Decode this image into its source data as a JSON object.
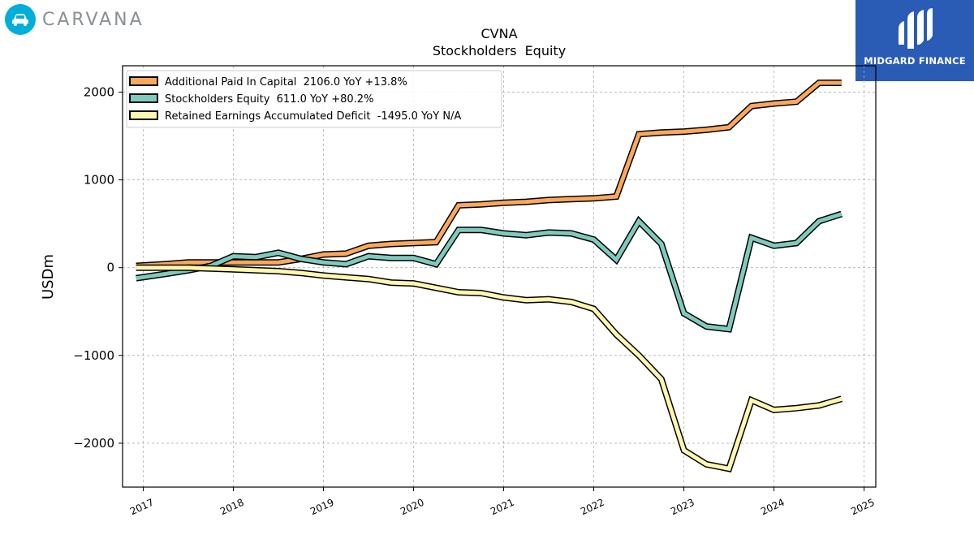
{
  "brand": {
    "left_logo_text": "CARVANA",
    "left_logo_color": "#00aed9",
    "right_logo_text": "MIDGARD FINANCE",
    "right_logo_color": "#2a5bb5"
  },
  "chart_data": {
    "type": "line",
    "title": "CVNA",
    "subtitle": "Stockholders  Equity",
    "xlabel": "",
    "ylabel": "USDm",
    "xlim": [
      2016.77,
      2025.13
    ],
    "ylim": [
      -2500,
      2300
    ],
    "x_ticks": [
      "2017",
      "2018",
      "2019",
      "2020",
      "2021",
      "2022",
      "2023",
      "2024",
      "2025"
    ],
    "y_ticks": [
      2000,
      1000,
      0,
      -1000,
      -2000
    ],
    "y_tick_labels": [
      "2000",
      "1000",
      "0",
      "−1000",
      "−2000"
    ],
    "grid": true,
    "legend_position": "top-left",
    "x": [
      2016.92,
      2017.25,
      2017.5,
      2017.75,
      2018.0,
      2018.25,
      2018.5,
      2018.75,
      2019.0,
      2019.25,
      2019.5,
      2019.75,
      2020.0,
      2020.25,
      2020.5,
      2020.75,
      2021.0,
      2021.25,
      2021.5,
      2021.75,
      2022.0,
      2022.25,
      2022.5,
      2022.75,
      2023.0,
      2023.25,
      2023.5,
      2023.75,
      2024.0,
      2024.25,
      2024.5,
      2024.75
    ],
    "series": [
      {
        "name": "Additional Paid In Capital",
        "legend": "Additional Paid In Capital  2106.0 YoY +13.8%",
        "color": "#f9a85d",
        "values": [
          20,
          40,
          60,
          60,
          60,
          60,
          60,
          100,
          150,
          160,
          250,
          270,
          280,
          290,
          710,
          720,
          740,
          750,
          770,
          780,
          790,
          810,
          1520,
          1540,
          1550,
          1570,
          1600,
          1840,
          1870,
          1890,
          2106,
          2106
        ]
      },
      {
        "name": "Stockholders Equity",
        "legend": "Stockholders Equity  611.0 YoY +80.2%",
        "color": "#7ecbbd",
        "values": [
          -120,
          -70,
          -30,
          20,
          130,
          120,
          170,
          100,
          60,
          40,
          130,
          110,
          110,
          40,
          430,
          430,
          390,
          370,
          400,
          390,
          320,
          90,
          530,
          270,
          -520,
          -670,
          -700,
          340,
          250,
          280,
          530,
          611
        ]
      },
      {
        "name": "Retained Earnings Accumulated Deficit",
        "legend": "Retained Earnings Accumulated Deficit  -1495.0 YoY N/A",
        "color": "#fff7b0",
        "values": [
          0,
          0,
          0,
          -10,
          -20,
          -30,
          -40,
          -60,
          -90,
          -110,
          -130,
          -170,
          -180,
          -230,
          -280,
          -290,
          -340,
          -370,
          -360,
          -390,
          -470,
          -760,
          -1000,
          -1270,
          -2080,
          -2240,
          -2290,
          -1510,
          -1620,
          -1600,
          -1570,
          -1495
        ]
      }
    ]
  }
}
